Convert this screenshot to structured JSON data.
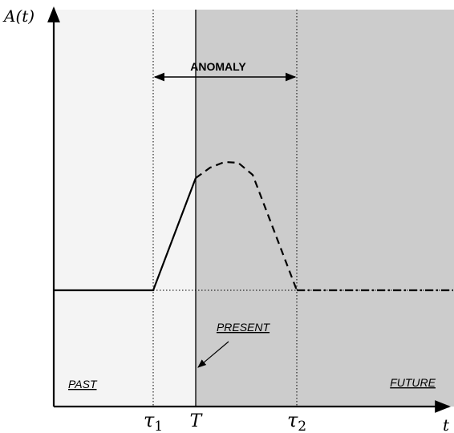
{
  "axes": {
    "y_label": "A(t)",
    "x_label": "t"
  },
  "regions": {
    "past": "PAST",
    "future": "FUTURE"
  },
  "annotations": {
    "anomaly": "ANOMALY",
    "present": "PRESENT"
  },
  "ticks": [
    {
      "symbol": "τ",
      "subscript": "1"
    },
    {
      "symbol": "T"
    },
    {
      "symbol": "τ",
      "subscript": "2"
    }
  ]
}
